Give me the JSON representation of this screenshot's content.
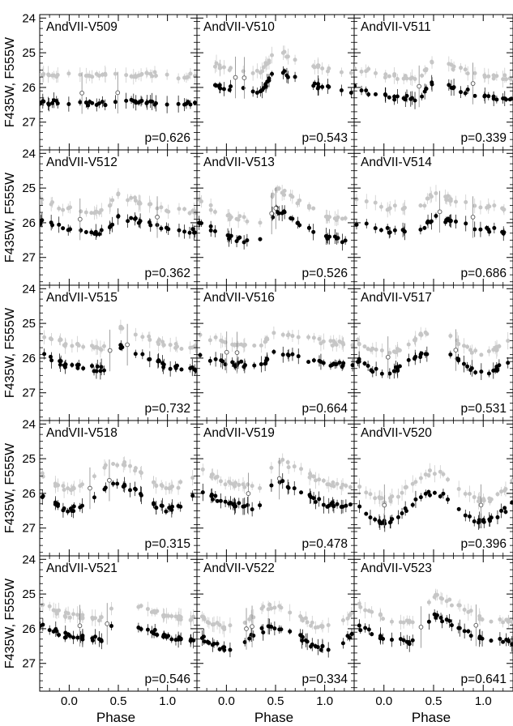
{
  "figure": {
    "xlabel": "Phase",
    "ylabel": "F435W, F555W",
    "xticks": [
      "0.0",
      "0.5",
      "1.0"
    ],
    "yticks": [
      "24",
      "25",
      "26",
      "27"
    ]
  },
  "chart_data": {
    "type": "scatter",
    "layout": "5 rows x 3 columns of light-curve panels",
    "xlabel": "Phase",
    "ylabel": "F435W, F555W",
    "xlim": [
      -0.3,
      1.3
    ],
    "ylim": [
      27.8,
      23.9
    ],
    "y_inverted": true,
    "series_legend": {
      "black_filled": "F555W",
      "gray_filled": "F435W",
      "open_circles": "low-quality points"
    },
    "panels": [
      {
        "name": "AndVII-V509",
        "p": "p=0.626",
        "template": "flat",
        "vMean": 26.45,
        "amp": 0.25,
        "offset": 0.8
      },
      {
        "name": "AndVII-V510",
        "p": "p=0.543",
        "template": "ab",
        "vMean": 25.95,
        "amp": 0.9,
        "offset": 0.55
      },
      {
        "name": "AndVII-V511",
        "p": "p=0.339",
        "template": "ab",
        "vMean": 26.2,
        "amp": 0.7,
        "offset": 0.6
      },
      {
        "name": "AndVII-V512",
        "p": "p=0.362",
        "template": "ab",
        "vMean": 26.15,
        "amp": 0.7,
        "offset": 0.6
      },
      {
        "name": "AndVII-V513",
        "p": "p=0.526",
        "template": "ab",
        "vMean": 26.3,
        "amp": 1.4,
        "offset": 0.6
      },
      {
        "name": "AndVII-V514",
        "p": "p=0.686",
        "template": "ab",
        "vMean": 26.15,
        "amp": 0.65,
        "offset": 0.65
      },
      {
        "name": "AndVII-V515",
        "p": "p=0.732",
        "template": "ab",
        "vMean": 26.15,
        "amp": 1.0,
        "offset": 0.6
      },
      {
        "name": "AndVII-V516",
        "p": "p=0.664",
        "template": "ab",
        "vMean": 26.1,
        "amp": 0.6,
        "offset": 0.6
      },
      {
        "name": "AndVII-V517",
        "p": "p=0.531",
        "template": "c",
        "vMean": 26.1,
        "amp": 0.6,
        "offset": 0.55
      },
      {
        "name": "AndVII-V518",
        "p": "p=0.315",
        "template": "c",
        "vMean": 26.1,
        "amp": 0.7,
        "offset": 0.6
      },
      {
        "name": "AndVII-V519",
        "p": "p=0.478",
        "template": "ab",
        "vMean": 26.2,
        "amp": 1.2,
        "offset": 0.6
      },
      {
        "name": "AndVII-V520",
        "p": "p=0.396",
        "template": "c",
        "vMean": 26.4,
        "amp": 0.8,
        "offset": 0.6
      },
      {
        "name": "AndVII-V521",
        "p": "p=0.546",
        "template": "ab",
        "vMean": 26.15,
        "amp": 0.9,
        "offset": 0.6
      },
      {
        "name": "AndVII-V522",
        "p": "p=0.334",
        "template": "c",
        "vMean": 26.25,
        "amp": 0.6,
        "offset": 0.6
      },
      {
        "name": "AndVII-V523",
        "p": "p=0.641",
        "template": "ab",
        "vMean": 26.2,
        "amp": 1.2,
        "offset": 0.6
      }
    ]
  }
}
